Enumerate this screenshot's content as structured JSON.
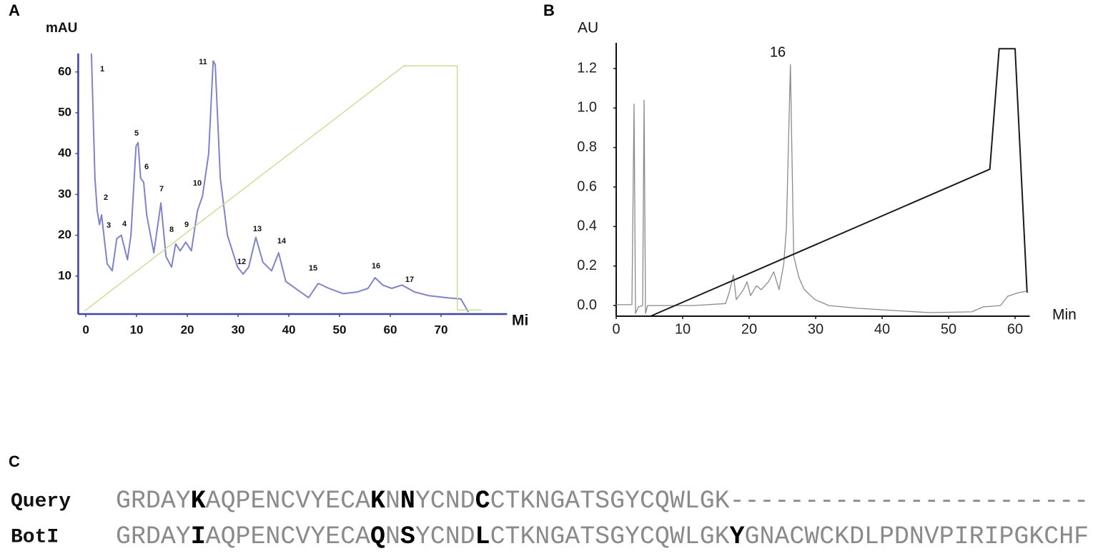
{
  "panel_labels": [
    "A",
    "B",
    "C"
  ],
  "chart_data": [
    {
      "type": "line",
      "y_label": "mAU",
      "x_label": "Mi",
      "xlim": [
        -1.5,
        83
      ],
      "ylim": [
        1,
        65
      ],
      "xticks": [
        0,
        10,
        20,
        30,
        40,
        50,
        60,
        70
      ],
      "yticks": [
        10,
        20,
        30,
        40,
        50,
        60
      ],
      "peak_labels": [
        "1",
        "2",
        "3",
        "4",
        "5",
        "6",
        "7",
        "8",
        "9",
        "10",
        "11",
        "12",
        "13",
        "14",
        "15",
        "16",
        "17"
      ],
      "series": [
        {
          "color": "#7f83cc",
          "x": [
            1.1,
            1.8,
            2.25,
            2.7,
            3.1,
            4.2,
            5.2,
            6.1,
            7.0,
            8.2,
            8.9,
            9.9,
            10.3,
            10.8,
            11.4,
            12.0,
            13.4,
            14.8,
            15.8,
            16.9,
            17.7,
            18.6,
            19.7,
            20.8,
            22.0,
            23.0,
            24.2,
            25.1,
            25.5,
            26.5,
            27.9,
            29.9,
            31.0,
            32.1,
            33.5,
            34.9,
            36.6,
            38.0,
            39.4,
            42.3,
            43.9,
            45.8,
            47.9,
            50.7,
            53.5,
            55.6,
            57.0,
            58.5,
            60.3,
            62.3,
            64.8,
            67.6,
            71.1,
            73.9,
            75.4
          ],
          "values": [
            64.5,
            34,
            26,
            22.6,
            25,
            13,
            11.3,
            19.2,
            20,
            14,
            20,
            41.8,
            42.7,
            34,
            33,
            25,
            15.7,
            27.9,
            14.8,
            12.2,
            17.9,
            16.2,
            18.3,
            16.2,
            26,
            29.6,
            40,
            62.7,
            61.8,
            34,
            20,
            12.2,
            10.5,
            12.2,
            19.5,
            13.4,
            11.3,
            15.7,
            8.7,
            6.1,
            4.7,
            8.2,
            7,
            5.7,
            6.1,
            7,
            9.6,
            7.8,
            7,
            7.8,
            6.1,
            5.2,
            4.7,
            4.4,
            1.2
          ]
        },
        {
          "color": "#c9d98c",
          "x": [
            -0.3,
            62.7,
            73.2,
            73.2,
            78
          ],
          "values": [
            1.4,
            61.5,
            61.5,
            1.7,
            1.7
          ]
        }
      ]
    },
    {
      "type": "line",
      "y_label": "AU",
      "x_label": "Min",
      "xlim": [
        0,
        62.2
      ],
      "ylim": [
        -0.054,
        1.33
      ],
      "xticks": [
        0,
        10,
        20,
        30,
        40,
        50,
        60
      ],
      "yticks": [
        {
          "value": 0,
          "label": "0.0"
        },
        0.2,
        0.4,
        0.6,
        0.8,
        {
          "value": 1,
          "label": "1.0"
        },
        1.2
      ],
      "peak_labels": [
        "16"
      ],
      "series": [
        {
          "color": "#8a8a8a",
          "x": [
            0,
            2.37,
            2.69,
            2.9,
            3.33,
            3.98,
            4.19,
            4.41,
            4.73,
            11.6,
            16.45,
            16.99,
            17.63,
            18.06,
            19.14,
            19.68,
            20.2,
            21.1,
            21.8,
            22.9,
            23.7,
            24.5,
            25.2,
            25.6,
            26.2,
            26.7,
            27.5,
            28.3,
            29.9,
            32,
            36.3,
            41.7,
            47.1,
            53.5,
            55.2,
            57.8,
            58.9,
            60.5,
            61.6
          ],
          "values": [
            0.004,
            0.004,
            1.02,
            -0.04,
            -0.007,
            0,
            1.04,
            -0.04,
            0,
            0,
            0.01,
            0.065,
            0.155,
            0.03,
            0.08,
            0.12,
            0.05,
            0.1,
            0.08,
            0.12,
            0.17,
            0.08,
            0.21,
            0.39,
            1.22,
            0.25,
            0.14,
            0.08,
            0.03,
            0,
            -0.014,
            -0.025,
            -0.036,
            -0.032,
            -0.007,
            0,
            0.047,
            0.065,
            0.072
          ]
        },
        {
          "color": "#1a1a1a",
          "x": [
            5.16,
            56.2,
            57.6,
            60,
            61.8
          ],
          "values": [
            -0.054,
            0.69,
            1.3,
            1.3,
            0.065
          ]
        }
      ]
    }
  ],
  "alignment": {
    "rows": [
      {
        "label": "Query",
        "segments": [
          {
            "text": "GRDAY"
          },
          {
            "text": "K",
            "bold": true
          },
          {
            "text": "AQPENCVYECA"
          },
          {
            "text": "K",
            "bold": true
          },
          {
            "text": "N"
          },
          {
            "text": "N",
            "bold": true
          },
          {
            "text": "YCND"
          },
          {
            "text": "C",
            "bold": true
          },
          {
            "text": "CTKNGATSGYCQWLGK"
          },
          {
            "text": "------------------------"
          }
        ]
      },
      {
        "label": "BotI",
        "segments": [
          {
            "text": "GRDAY"
          },
          {
            "text": "I",
            "bold": true
          },
          {
            "text": "AQPENCVYECA"
          },
          {
            "text": "Q",
            "bold": true
          },
          {
            "text": "N"
          },
          {
            "text": "S",
            "bold": true
          },
          {
            "text": "YCND"
          },
          {
            "text": "L",
            "bold": true
          },
          {
            "text": "CTKNGATSGYCQWLGK"
          },
          {
            "text": "Y",
            "bold": true
          },
          {
            "text": "GNACWCKDLPDNVPIRIPGKCHF"
          }
        ]
      }
    ]
  }
}
